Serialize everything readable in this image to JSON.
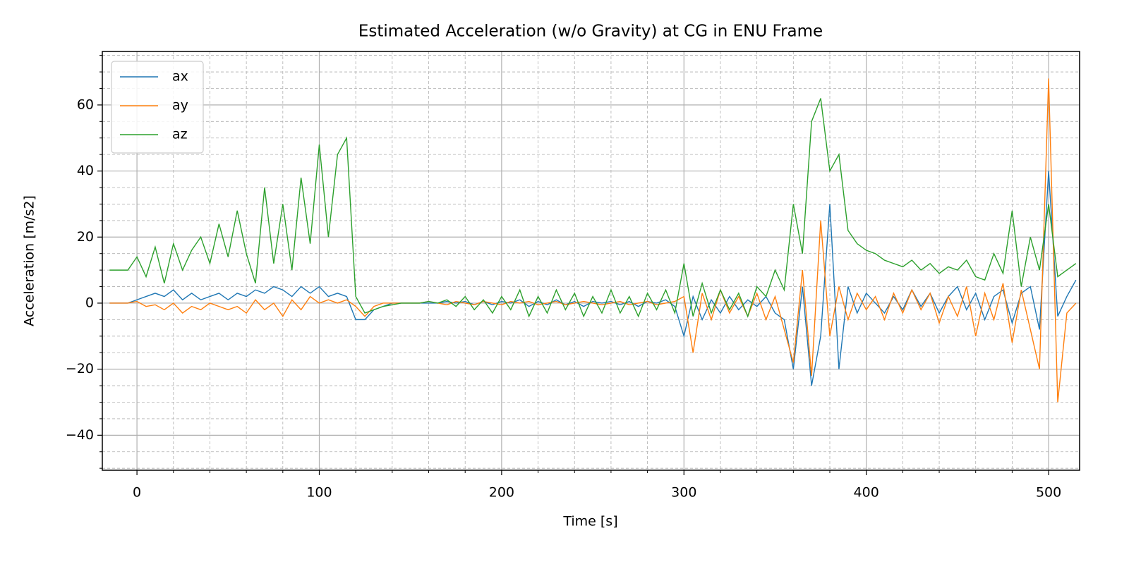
{
  "chart_data": {
    "type": "line",
    "title": "Estimated Acceleration (w/o Gravity) at CG in ENU Frame",
    "xlabel": "Time [s]",
    "ylabel": "Acceleration [m/s2]",
    "x": [
      -15,
      -10,
      -5,
      0,
      5,
      10,
      15,
      20,
      25,
      30,
      35,
      40,
      45,
      50,
      55,
      60,
      65,
      70,
      75,
      80,
      85,
      90,
      95,
      100,
      105,
      110,
      115,
      120,
      125,
      130,
      135,
      140,
      145,
      150,
      155,
      160,
      165,
      170,
      175,
      180,
      185,
      190,
      195,
      200,
      205,
      210,
      215,
      220,
      225,
      230,
      235,
      240,
      245,
      250,
      255,
      260,
      265,
      270,
      275,
      280,
      285,
      290,
      295,
      300,
      305,
      310,
      315,
      320,
      325,
      330,
      335,
      340,
      345,
      350,
      355,
      360,
      365,
      370,
      375,
      380,
      385,
      390,
      395,
      400,
      405,
      410,
      415,
      420,
      425,
      430,
      435,
      440,
      445,
      450,
      455,
      460,
      465,
      470,
      475,
      480,
      485,
      490,
      495,
      500,
      505,
      510,
      515
    ],
    "series": [
      {
        "name": "ax",
        "color": "#1f77b4",
        "values": [
          0,
          0,
          0,
          1,
          2,
          3,
          2,
          4,
          1,
          3,
          1,
          2,
          3,
          1,
          3,
          2,
          4,
          3,
          5,
          4,
          2,
          5,
          3,
          5,
          2,
          3,
          2,
          -5,
          -5,
          -2,
          -1,
          0,
          0,
          0,
          0,
          0,
          0,
          0.5,
          0,
          0.5,
          -0.5,
          0.5,
          -0.5,
          0.5,
          0,
          1,
          -1,
          0.5,
          -0.5,
          1,
          -0.5,
          0.5,
          -1,
          0.5,
          0,
          0.5,
          -0.5,
          0.5,
          -1,
          0.5,
          0,
          1,
          -1,
          -10,
          2,
          -5,
          1,
          -3,
          2,
          -2,
          1,
          -1,
          2,
          -3,
          -5,
          -20,
          5,
          -25,
          -10,
          30,
          -20,
          5,
          -3,
          3,
          0,
          -3,
          2,
          -2,
          4,
          -1,
          3,
          -3,
          2,
          5,
          -2,
          3,
          -5,
          2,
          4,
          -6,
          3,
          5,
          -8,
          40,
          -4,
          2,
          7
        ]
      },
      {
        "name": "ay",
        "color": "#ff7f0e",
        "values": [
          0,
          0,
          0,
          0.5,
          -1,
          -0.5,
          -2,
          0,
          -3,
          -1,
          -2,
          0,
          -1,
          -2,
          -1,
          -3,
          1,
          -2,
          0,
          -4,
          1,
          -2,
          2,
          0,
          1,
          0,
          1,
          -1,
          -4,
          -1,
          0,
          0,
          0,
          0,
          0,
          0.5,
          0,
          -0.5,
          0.5,
          0,
          -0.5,
          0.5,
          0,
          -0.5,
          0.5,
          0,
          0.5,
          -0.5,
          0,
          0.5,
          -0.5,
          0,
          0.5,
          0,
          -0.5,
          0,
          0.5,
          -0.5,
          0,
          0.5,
          -0.5,
          0,
          0.5,
          2,
          -15,
          3,
          -5,
          4,
          -3,
          2,
          -4,
          3,
          -5,
          2,
          -8,
          -18,
          10,
          -22,
          25,
          -10,
          5,
          -5,
          3,
          -2,
          2,
          -5,
          3,
          -3,
          4,
          -2,
          3,
          -6,
          2,
          -4,
          5,
          -10,
          3,
          -5,
          6,
          -12,
          4,
          -8,
          -20,
          68,
          -30,
          -3,
          0
        ]
      },
      {
        "name": "az",
        "color": "#2ca02c",
        "values": [
          10,
          10,
          10,
          14,
          8,
          17,
          6,
          18,
          10,
          16,
          20,
          12,
          24,
          14,
          28,
          15,
          6,
          35,
          12,
          30,
          10,
          38,
          18,
          48,
          20,
          45,
          50,
          2,
          -3,
          -2,
          -1,
          -0.5,
          0,
          0,
          0,
          0.5,
          0,
          1,
          -1,
          2,
          -2,
          1,
          -3,
          2,
          -2,
          4,
          -4,
          2,
          -3,
          4,
          -2,
          3,
          -4,
          2,
          -3,
          4,
          -3,
          2,
          -4,
          3,
          -2,
          4,
          -3,
          12,
          -4,
          6,
          -3,
          4,
          -2,
          3,
          -4,
          5,
          2,
          10,
          4,
          30,
          15,
          55,
          62,
          40,
          45,
          22,
          18,
          16,
          15,
          13,
          12,
          11,
          13,
          10,
          12,
          9,
          11,
          10,
          13,
          8,
          7,
          15,
          9,
          28,
          5,
          20,
          10,
          30,
          8,
          10,
          12
        ]
      }
    ],
    "xlim": [
      -19,
      517
    ],
    "ylim": [
      -50.6,
      76.2
    ],
    "xticks": [
      0,
      100,
      200,
      300,
      400,
      500
    ],
    "yticks": [
      {
        "value": -40,
        "label": "−40"
      },
      {
        "value": -20,
        "label": "−20"
      },
      0,
      20,
      40,
      60
    ],
    "xminorticks": [
      20,
      40,
      60,
      80,
      120,
      140,
      160,
      180,
      220,
      240,
      260,
      280,
      320,
      340,
      360,
      380,
      420,
      440,
      460,
      480
    ],
    "yminorticks": [
      -50,
      -45,
      -35,
      -30,
      -25,
      -15,
      -10,
      -5,
      5,
      10,
      15,
      25,
      30,
      35,
      45,
      50,
      55,
      65,
      70,
      75
    ],
    "grid": true,
    "legend": "upper left"
  }
}
